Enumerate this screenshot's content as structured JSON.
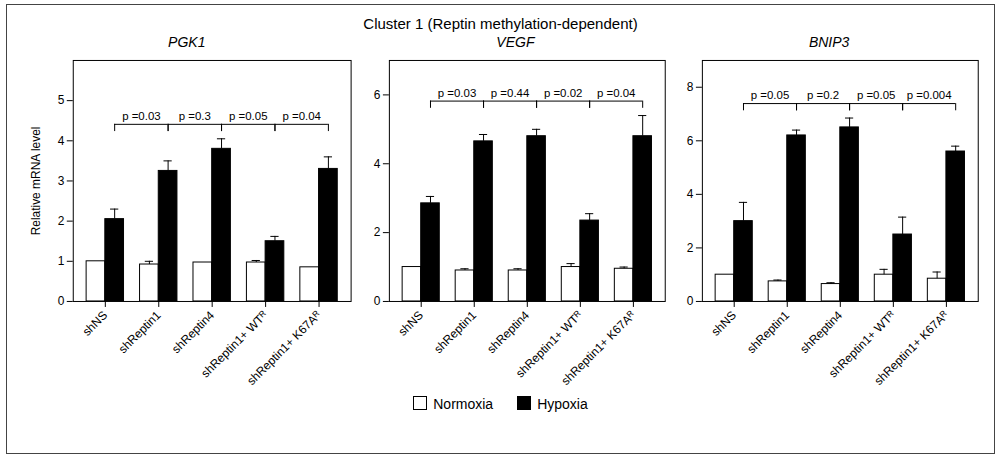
{
  "title": "Cluster 1 (Reptin methylation-dependent)",
  "legend": "bottom",
  "chart_data": [
    {
      "type": "bar",
      "title": "PGK1",
      "y_label": "Relative mRNA level",
      "categories": [
        "shNS",
        "shReptin1",
        "shReptin4",
        "shReptin1+ WTᴿ",
        "shReptin1+ K67Aᴿ"
      ],
      "series": [
        {
          "name": "Normoxia",
          "color": "#ffffff",
          "values": [
            1.0,
            0.92,
            0.97,
            0.97,
            0.85
          ],
          "errors": [
            0,
            0.08,
            0,
            0.05,
            0
          ]
        },
        {
          "name": "Hypoxia",
          "color": "#000000",
          "values": [
            2.05,
            3.25,
            3.8,
            1.5,
            3.3
          ],
          "errors": [
            0.25,
            0.25,
            0.25,
            0.12,
            0.3
          ]
        }
      ],
      "ylim": [
        0,
        6
      ],
      "yticks": [
        0,
        1,
        2,
        3,
        4,
        5
      ],
      "grid": false,
      "brackets": [
        {
          "between": [
            "shNS",
            "shReptin1"
          ],
          "label": "p =0.03"
        },
        {
          "between": [
            "shReptin1",
            "shReptin4"
          ],
          "label": "p =0.3"
        },
        {
          "between": [
            "shReptin4",
            "shReptin1+ WTᴿ"
          ],
          "label": "p =0.05"
        },
        {
          "between": [
            "shReptin1+ WTᴿ",
            "shReptin1+ K67Aᴿ"
          ],
          "label": "p =0.04"
        }
      ]
    },
    {
      "type": "bar",
      "title": "VEGF",
      "categories": [
        "shNS",
        "shReptin1",
        "shReptin4",
        "shReptin1+ WTᴿ",
        "shReptin1+ K67Aᴿ"
      ],
      "series": [
        {
          "name": "Normoxia",
          "color": "#ffffff",
          "values": [
            1.0,
            0.9,
            0.9,
            1.0,
            0.95
          ],
          "errors": [
            0,
            0.05,
            0.05,
            0.1,
            0.05
          ]
        },
        {
          "name": "Hypoxia",
          "color": "#000000",
          "values": [
            2.85,
            4.65,
            4.8,
            2.35,
            4.8
          ],
          "errors": [
            0.2,
            0.2,
            0.2,
            0.2,
            0.6
          ]
        }
      ],
      "ylim": [
        0,
        7
      ],
      "yticks": [
        0,
        2,
        4,
        6
      ],
      "grid": false,
      "brackets": [
        {
          "between": [
            "shNS",
            "shReptin1"
          ],
          "label": "p =0.03"
        },
        {
          "between": [
            "shReptin1",
            "shReptin4"
          ],
          "label": "p =0.44"
        },
        {
          "between": [
            "shReptin4",
            "shReptin1+ WTᴿ"
          ],
          "label": "p =0.02"
        },
        {
          "between": [
            "shReptin1+ WTᴿ",
            "shReptin1+ K67Aᴿ"
          ],
          "label": "p =0.04"
        }
      ]
    },
    {
      "type": "bar",
      "title": "BNIP3",
      "categories": [
        "shNS",
        "shReptin1",
        "shReptin4",
        "shReptin1+ WTᴿ",
        "shReptin1+ K67Aᴿ"
      ],
      "series": [
        {
          "name": "Normoxia",
          "color": "#ffffff",
          "values": [
            1.0,
            0.75,
            0.65,
            1.0,
            0.85
          ],
          "errors": [
            0,
            0.05,
            0.05,
            0.2,
            0.25
          ]
        },
        {
          "name": "Hypoxia",
          "color": "#000000",
          "values": [
            3.0,
            6.2,
            6.5,
            2.5,
            5.6
          ],
          "errors": [
            0.7,
            0.2,
            0.35,
            0.65,
            0.2
          ]
        }
      ],
      "ylim": [
        0,
        9
      ],
      "yticks": [
        0,
        2,
        4,
        6,
        8
      ],
      "grid": false,
      "brackets": [
        {
          "between": [
            "shNS",
            "shReptin1"
          ],
          "label": "p =0.05"
        },
        {
          "between": [
            "shReptin1",
            "shReptin4"
          ],
          "label": "p =0.2"
        },
        {
          "between": [
            "shReptin4",
            "shReptin1+ WTᴿ"
          ],
          "label": "p =0.05"
        },
        {
          "between": [
            "shReptin1+ WTᴿ",
            "shReptin1+ K67Aᴿ"
          ],
          "label": "p =0.004"
        }
      ]
    }
  ]
}
